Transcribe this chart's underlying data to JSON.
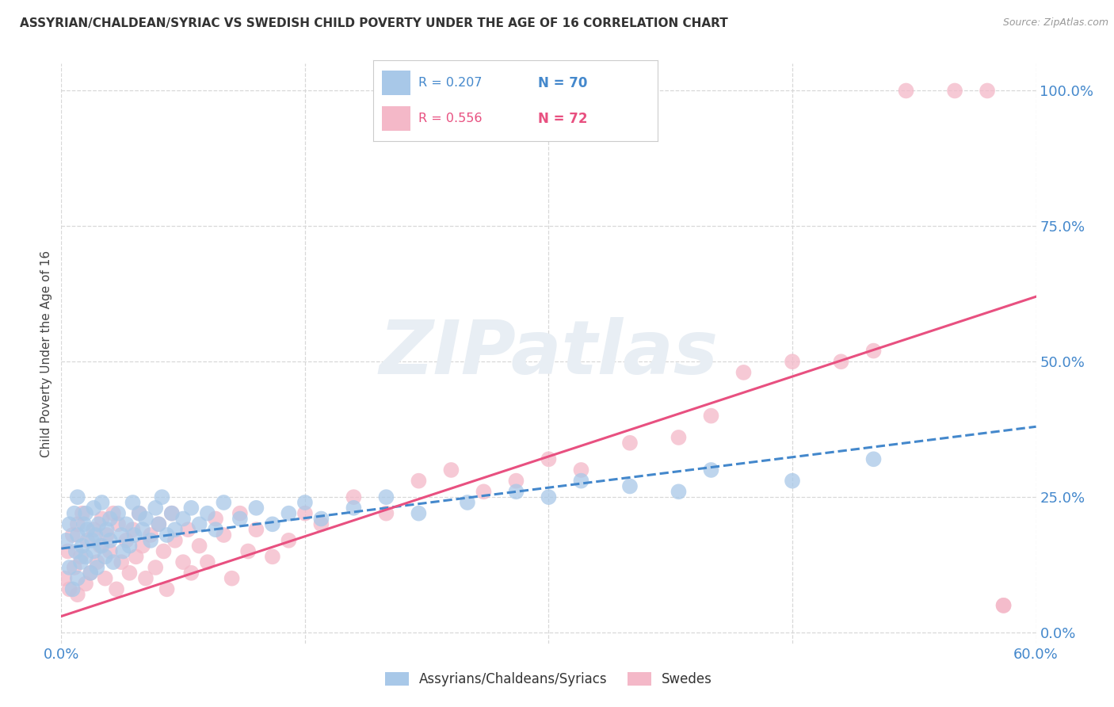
{
  "title": "ASSYRIAN/CHALDEAN/SYRIAC VS SWEDISH CHILD POVERTY UNDER THE AGE OF 16 CORRELATION CHART",
  "source": "Source: ZipAtlas.com",
  "ylabel": "Child Poverty Under the Age of 16",
  "legend_blue_r": "R = 0.207",
  "legend_blue_n": "N = 70",
  "legend_pink_r": "R = 0.556",
  "legend_pink_n": "N = 72",
  "legend_blue_label": "Assyrians/Chaldeans/Syriacs",
  "legend_pink_label": "Swedes",
  "xlim": [
    0.0,
    0.6
  ],
  "ylim": [
    -0.02,
    1.05
  ],
  "background_color": "#ffffff",
  "plot_bg_color": "#ffffff",
  "grid_color": "#d8d8d8",
  "blue_color": "#a8c8e8",
  "pink_color": "#f4b8c8",
  "blue_line_color": "#4488cc",
  "pink_line_color": "#e85080",
  "watermark_color": "#e8eef4",
  "blue_scatter_x": [
    0.003,
    0.005,
    0.005,
    0.007,
    0.008,
    0.009,
    0.01,
    0.01,
    0.01,
    0.012,
    0.013,
    0.014,
    0.015,
    0.015,
    0.016,
    0.018,
    0.019,
    0.02,
    0.02,
    0.021,
    0.022,
    0.023,
    0.025,
    0.025,
    0.027,
    0.028,
    0.03,
    0.03,
    0.032,
    0.035,
    0.037,
    0.038,
    0.04,
    0.042,
    0.044,
    0.045,
    0.048,
    0.05,
    0.052,
    0.055,
    0.058,
    0.06,
    0.062,
    0.065,
    0.068,
    0.07,
    0.075,
    0.08,
    0.085,
    0.09,
    0.095,
    0.1,
    0.11,
    0.12,
    0.13,
    0.14,
    0.15,
    0.16,
    0.18,
    0.2,
    0.22,
    0.25,
    0.28,
    0.3,
    0.32,
    0.35,
    0.38,
    0.4,
    0.45,
    0.5
  ],
  "blue_scatter_y": [
    0.17,
    0.2,
    0.12,
    0.08,
    0.22,
    0.15,
    0.18,
    0.1,
    0.25,
    0.13,
    0.16,
    0.2,
    0.14,
    0.22,
    0.19,
    0.11,
    0.17,
    0.15,
    0.23,
    0.18,
    0.12,
    0.2,
    0.16,
    0.24,
    0.14,
    0.19,
    0.17,
    0.21,
    0.13,
    0.22,
    0.18,
    0.15,
    0.2,
    0.16,
    0.24,
    0.18,
    0.22,
    0.19,
    0.21,
    0.17,
    0.23,
    0.2,
    0.25,
    0.18,
    0.22,
    0.19,
    0.21,
    0.23,
    0.2,
    0.22,
    0.19,
    0.24,
    0.21,
    0.23,
    0.2,
    0.22,
    0.24,
    0.21,
    0.23,
    0.25,
    0.22,
    0.24,
    0.26,
    0.25,
    0.28,
    0.27,
    0.26,
    0.3,
    0.28,
    0.32
  ],
  "pink_scatter_x": [
    0.002,
    0.004,
    0.005,
    0.007,
    0.008,
    0.01,
    0.01,
    0.012,
    0.013,
    0.015,
    0.016,
    0.018,
    0.02,
    0.022,
    0.024,
    0.025,
    0.027,
    0.028,
    0.03,
    0.032,
    0.034,
    0.035,
    0.037,
    0.04,
    0.042,
    0.044,
    0.046,
    0.048,
    0.05,
    0.052,
    0.055,
    0.058,
    0.06,
    0.063,
    0.065,
    0.068,
    0.07,
    0.075,
    0.078,
    0.08,
    0.085,
    0.09,
    0.095,
    0.1,
    0.105,
    0.11,
    0.115,
    0.12,
    0.13,
    0.14,
    0.15,
    0.16,
    0.18,
    0.2,
    0.22,
    0.24,
    0.26,
    0.28,
    0.3,
    0.32,
    0.35,
    0.38,
    0.4,
    0.42,
    0.45,
    0.48,
    0.5,
    0.52,
    0.55,
    0.57,
    0.58,
    0.58
  ],
  "pink_scatter_y": [
    0.1,
    0.15,
    0.08,
    0.18,
    0.12,
    0.2,
    0.07,
    0.14,
    0.22,
    0.09,
    0.17,
    0.11,
    0.19,
    0.13,
    0.16,
    0.21,
    0.1,
    0.18,
    0.15,
    0.22,
    0.08,
    0.2,
    0.13,
    0.17,
    0.11,
    0.19,
    0.14,
    0.22,
    0.16,
    0.1,
    0.18,
    0.12,
    0.2,
    0.15,
    0.08,
    0.22,
    0.17,
    0.13,
    0.19,
    0.11,
    0.16,
    0.13,
    0.21,
    0.18,
    0.1,
    0.22,
    0.15,
    0.19,
    0.14,
    0.17,
    0.22,
    0.2,
    0.25,
    0.22,
    0.28,
    0.3,
    0.26,
    0.28,
    0.32,
    0.3,
    0.35,
    0.36,
    0.4,
    0.48,
    0.5,
    0.5,
    0.52,
    1.0,
    1.0,
    1.0,
    0.05,
    0.05
  ],
  "blue_regline": [
    0.0,
    0.6
  ],
  "blue_regline_y": [
    0.155,
    0.38
  ],
  "pink_regline": [
    0.0,
    0.6
  ],
  "pink_regline_y": [
    0.03,
    0.62
  ]
}
